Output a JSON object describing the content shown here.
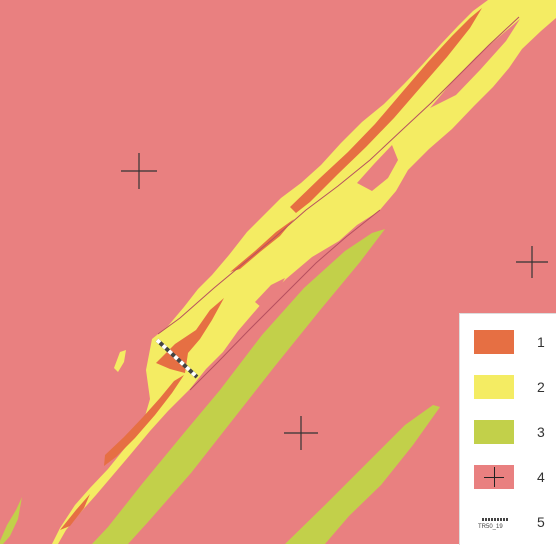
{
  "colors": {
    "class1": "#e66f43",
    "class2": "#f4ec63",
    "class3": "#c2d04a",
    "class4": "#e98080",
    "outline": "#b7505f"
  },
  "legend": {
    "items": [
      {
        "label": "1",
        "swatch": "orange-fill"
      },
      {
        "label": "2",
        "swatch": "yellow-fill"
      },
      {
        "label": "3",
        "swatch": "green-fill"
      },
      {
        "label": "4",
        "swatch": "red-fill-with-cross"
      },
      {
        "label": "5",
        "swatch": "dashed-profile-line",
        "annotation": "TR50_19"
      }
    ]
  }
}
